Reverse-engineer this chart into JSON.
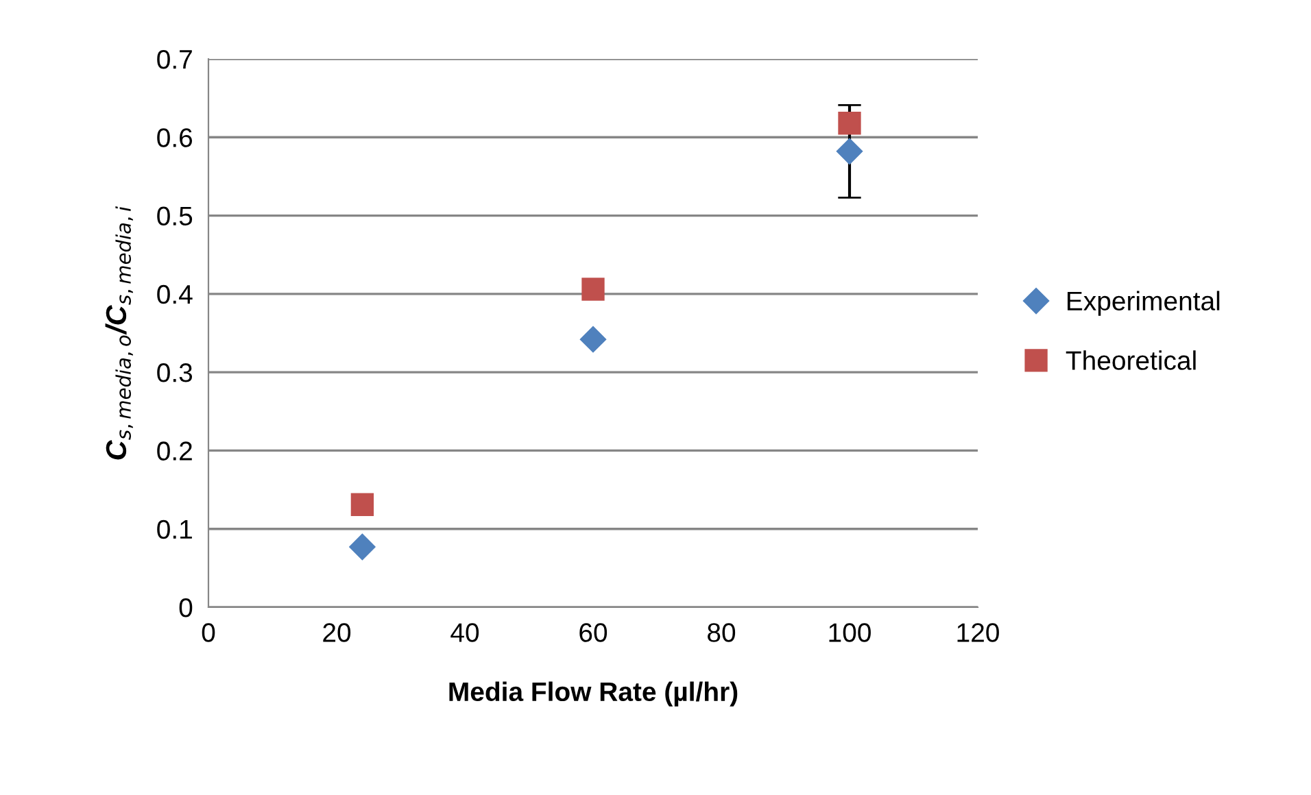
{
  "chart_data": {
    "type": "scatter",
    "xlabel": "Media Flow Rate (µl/hr)",
    "ylabel": "C$_{s,media,o}$/C$_{s,media,i}$",
    "xlim": [
      0,
      120
    ],
    "xticks": [
      0,
      20,
      40,
      60,
      80,
      100,
      120
    ],
    "ylim": [
      0,
      0.7
    ],
    "yticks": [
      0,
      0.1,
      0.2,
      0.3,
      0.4,
      0.5,
      0.6,
      0.7
    ],
    "grid": "y",
    "legend": "right",
    "series": [
      {
        "name": "Experimental",
        "color": "#4f81bd",
        "marker": "diamond",
        "x": [
          24,
          60,
          100
        ],
        "values": [
          0.077,
          0.342,
          0.582
        ],
        "errors": [
          null,
          null,
          0.059
        ]
      },
      {
        "name": "Theoretical",
        "color": "#c0504d",
        "marker": "square",
        "x": [
          24,
          60,
          100
        ],
        "values": [
          0.131,
          0.406,
          0.618
        ]
      }
    ]
  }
}
